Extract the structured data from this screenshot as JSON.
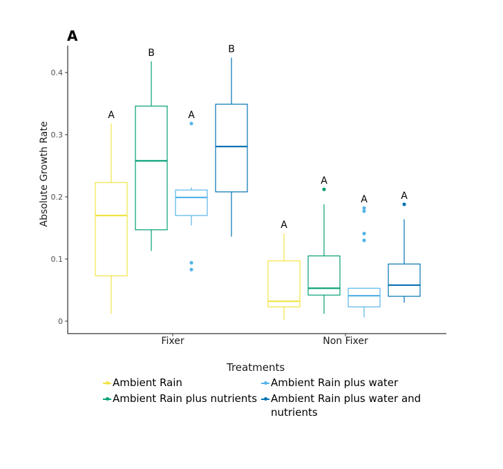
{
  "panel_label": "A",
  "chart_data": {
    "type": "boxplot",
    "ylabel": "Absolute Growth Rate",
    "xlabel": "",
    "ylim": [
      -0.02,
      0.44
    ],
    "yticks": [
      0,
      0.1,
      0.2,
      0.3,
      0.4
    ],
    "ytick_labels": [
      "0",
      "0.1",
      "0.2",
      "0.3",
      "0.4"
    ],
    "grid": false,
    "categories": [
      "Fixer",
      "Non Fixer"
    ],
    "series": [
      {
        "name": "Ambient Rain",
        "color": "#F0E442"
      },
      {
        "name": "Ambient Rain plus nutrients",
        "color": "#009E73"
      },
      {
        "name": "Ambient Rain plus water",
        "color": "#56B4E9"
      },
      {
        "name": "Ambient Rain plus water and nutrients",
        "color": "#0072B2"
      }
    ],
    "boxes": [
      {
        "category": "Fixer",
        "series": 0,
        "min": 0.012,
        "q1": 0.073,
        "median": 0.17,
        "q3": 0.223,
        "max": 0.318,
        "outliers": [],
        "letter": "A"
      },
      {
        "category": "Fixer",
        "series": 1,
        "min": 0.113,
        "q1": 0.147,
        "median": 0.258,
        "q3": 0.346,
        "max": 0.418,
        "outliers": [],
        "letter": "B"
      },
      {
        "category": "Fixer",
        "series": 2,
        "min": 0.154,
        "q1": 0.17,
        "median": 0.199,
        "q3": 0.211,
        "max": 0.215,
        "outliers": [
          0.318,
          0.094,
          0.083
        ],
        "letter": "A"
      },
      {
        "category": "Fixer",
        "series": 3,
        "min": 0.136,
        "q1": 0.208,
        "median": 0.281,
        "q3": 0.349,
        "max": 0.424,
        "outliers": [],
        "letter": "B"
      },
      {
        "category": "Non Fixer",
        "series": 0,
        "min": 0.002,
        "q1": 0.023,
        "median": 0.032,
        "q3": 0.097,
        "max": 0.141,
        "outliers": [],
        "letter": "A"
      },
      {
        "category": "Non Fixer",
        "series": 1,
        "min": 0.012,
        "q1": 0.042,
        "median": 0.053,
        "q3": 0.105,
        "max": 0.188,
        "outliers": [
          0.212
        ],
        "letter": "A"
      },
      {
        "category": "Non Fixer",
        "series": 2,
        "min": 0.006,
        "q1": 0.023,
        "median": 0.041,
        "q3": 0.053,
        "max": 0.053,
        "outliers": [
          0.182,
          0.177,
          0.141,
          0.13
        ],
        "letter": "A"
      },
      {
        "category": "Non Fixer",
        "series": 3,
        "min": 0.03,
        "q1": 0.04,
        "median": 0.058,
        "q3": 0.092,
        "max": 0.164,
        "outliers": [
          0.188
        ],
        "letter": "A"
      }
    ]
  },
  "legend": {
    "title": "Treatments",
    "position": "bottom",
    "items": [
      {
        "line1": "Ambient Rain",
        "line2": "",
        "color": "#F0E442"
      },
      {
        "line1": "Ambient Rain plus nutrients",
        "line2": "",
        "color": "#009E73"
      },
      {
        "line1": "Ambient Rain plus water",
        "line2": "",
        "color": "#56B4E9"
      },
      {
        "line1": "Ambient Rain plus water and",
        "line2": "nutrients",
        "color": "#0072B2"
      }
    ]
  }
}
